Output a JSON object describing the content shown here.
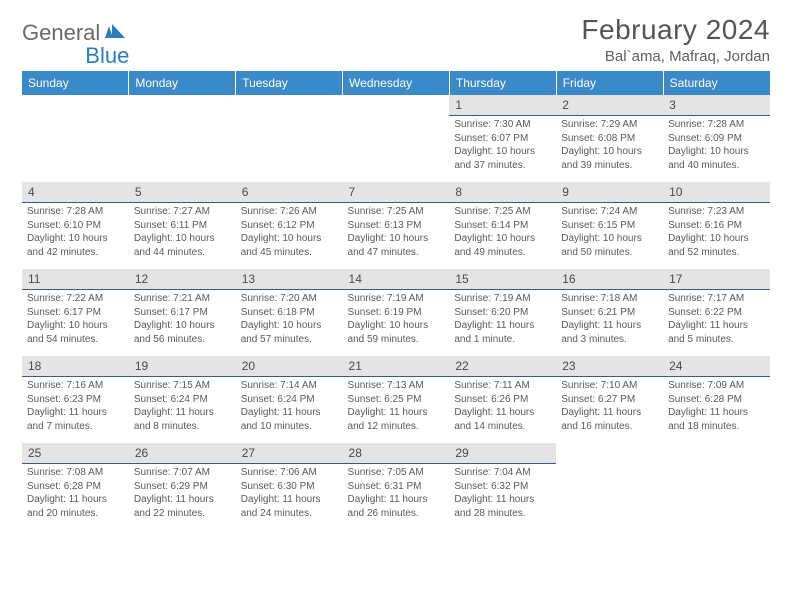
{
  "logo": {
    "text1": "General",
    "text2": "Blue"
  },
  "title": "February 2024",
  "location": "Bal`ama, Mafraq, Jordan",
  "dayHeaders": [
    "Sunday",
    "Monday",
    "Tuesday",
    "Wednesday",
    "Thursday",
    "Friday",
    "Saturday"
  ],
  "colors": {
    "headerBg": "#3a89c9",
    "headerText": "#ffffff",
    "dayNumBg": "#e4e4e4",
    "border": "#2e5f8a",
    "logoBlue": "#2e7cc0",
    "text": "#5a5a5a"
  },
  "weeks": [
    [
      null,
      null,
      null,
      null,
      {
        "n": "1",
        "sr": "Sunrise: 7:30 AM",
        "ss": "Sunset: 6:07 PM",
        "dl": "Daylight: 10 hours and 37 minutes."
      },
      {
        "n": "2",
        "sr": "Sunrise: 7:29 AM",
        "ss": "Sunset: 6:08 PM",
        "dl": "Daylight: 10 hours and 39 minutes."
      },
      {
        "n": "3",
        "sr": "Sunrise: 7:28 AM",
        "ss": "Sunset: 6:09 PM",
        "dl": "Daylight: 10 hours and 40 minutes."
      }
    ],
    [
      {
        "n": "4",
        "sr": "Sunrise: 7:28 AM",
        "ss": "Sunset: 6:10 PM",
        "dl": "Daylight: 10 hours and 42 minutes."
      },
      {
        "n": "5",
        "sr": "Sunrise: 7:27 AM",
        "ss": "Sunset: 6:11 PM",
        "dl": "Daylight: 10 hours and 44 minutes."
      },
      {
        "n": "6",
        "sr": "Sunrise: 7:26 AM",
        "ss": "Sunset: 6:12 PM",
        "dl": "Daylight: 10 hours and 45 minutes."
      },
      {
        "n": "7",
        "sr": "Sunrise: 7:25 AM",
        "ss": "Sunset: 6:13 PM",
        "dl": "Daylight: 10 hours and 47 minutes."
      },
      {
        "n": "8",
        "sr": "Sunrise: 7:25 AM",
        "ss": "Sunset: 6:14 PM",
        "dl": "Daylight: 10 hours and 49 minutes."
      },
      {
        "n": "9",
        "sr": "Sunrise: 7:24 AM",
        "ss": "Sunset: 6:15 PM",
        "dl": "Daylight: 10 hours and 50 minutes."
      },
      {
        "n": "10",
        "sr": "Sunrise: 7:23 AM",
        "ss": "Sunset: 6:16 PM",
        "dl": "Daylight: 10 hours and 52 minutes."
      }
    ],
    [
      {
        "n": "11",
        "sr": "Sunrise: 7:22 AM",
        "ss": "Sunset: 6:17 PM",
        "dl": "Daylight: 10 hours and 54 minutes."
      },
      {
        "n": "12",
        "sr": "Sunrise: 7:21 AM",
        "ss": "Sunset: 6:17 PM",
        "dl": "Daylight: 10 hours and 56 minutes."
      },
      {
        "n": "13",
        "sr": "Sunrise: 7:20 AM",
        "ss": "Sunset: 6:18 PM",
        "dl": "Daylight: 10 hours and 57 minutes."
      },
      {
        "n": "14",
        "sr": "Sunrise: 7:19 AM",
        "ss": "Sunset: 6:19 PM",
        "dl": "Daylight: 10 hours and 59 minutes."
      },
      {
        "n": "15",
        "sr": "Sunrise: 7:19 AM",
        "ss": "Sunset: 6:20 PM",
        "dl": "Daylight: 11 hours and 1 minute."
      },
      {
        "n": "16",
        "sr": "Sunrise: 7:18 AM",
        "ss": "Sunset: 6:21 PM",
        "dl": "Daylight: 11 hours and 3 minutes."
      },
      {
        "n": "17",
        "sr": "Sunrise: 7:17 AM",
        "ss": "Sunset: 6:22 PM",
        "dl": "Daylight: 11 hours and 5 minutes."
      }
    ],
    [
      {
        "n": "18",
        "sr": "Sunrise: 7:16 AM",
        "ss": "Sunset: 6:23 PM",
        "dl": "Daylight: 11 hours and 7 minutes."
      },
      {
        "n": "19",
        "sr": "Sunrise: 7:15 AM",
        "ss": "Sunset: 6:24 PM",
        "dl": "Daylight: 11 hours and 8 minutes."
      },
      {
        "n": "20",
        "sr": "Sunrise: 7:14 AM",
        "ss": "Sunset: 6:24 PM",
        "dl": "Daylight: 11 hours and 10 minutes."
      },
      {
        "n": "21",
        "sr": "Sunrise: 7:13 AM",
        "ss": "Sunset: 6:25 PM",
        "dl": "Daylight: 11 hours and 12 minutes."
      },
      {
        "n": "22",
        "sr": "Sunrise: 7:11 AM",
        "ss": "Sunset: 6:26 PM",
        "dl": "Daylight: 11 hours and 14 minutes."
      },
      {
        "n": "23",
        "sr": "Sunrise: 7:10 AM",
        "ss": "Sunset: 6:27 PM",
        "dl": "Daylight: 11 hours and 16 minutes."
      },
      {
        "n": "24",
        "sr": "Sunrise: 7:09 AM",
        "ss": "Sunset: 6:28 PM",
        "dl": "Daylight: 11 hours and 18 minutes."
      }
    ],
    [
      {
        "n": "25",
        "sr": "Sunrise: 7:08 AM",
        "ss": "Sunset: 6:28 PM",
        "dl": "Daylight: 11 hours and 20 minutes."
      },
      {
        "n": "26",
        "sr": "Sunrise: 7:07 AM",
        "ss": "Sunset: 6:29 PM",
        "dl": "Daylight: 11 hours and 22 minutes."
      },
      {
        "n": "27",
        "sr": "Sunrise: 7:06 AM",
        "ss": "Sunset: 6:30 PM",
        "dl": "Daylight: 11 hours and 24 minutes."
      },
      {
        "n": "28",
        "sr": "Sunrise: 7:05 AM",
        "ss": "Sunset: 6:31 PM",
        "dl": "Daylight: 11 hours and 26 minutes."
      },
      {
        "n": "29",
        "sr": "Sunrise: 7:04 AM",
        "ss": "Sunset: 6:32 PM",
        "dl": "Daylight: 11 hours and 28 minutes."
      },
      null,
      null
    ]
  ]
}
